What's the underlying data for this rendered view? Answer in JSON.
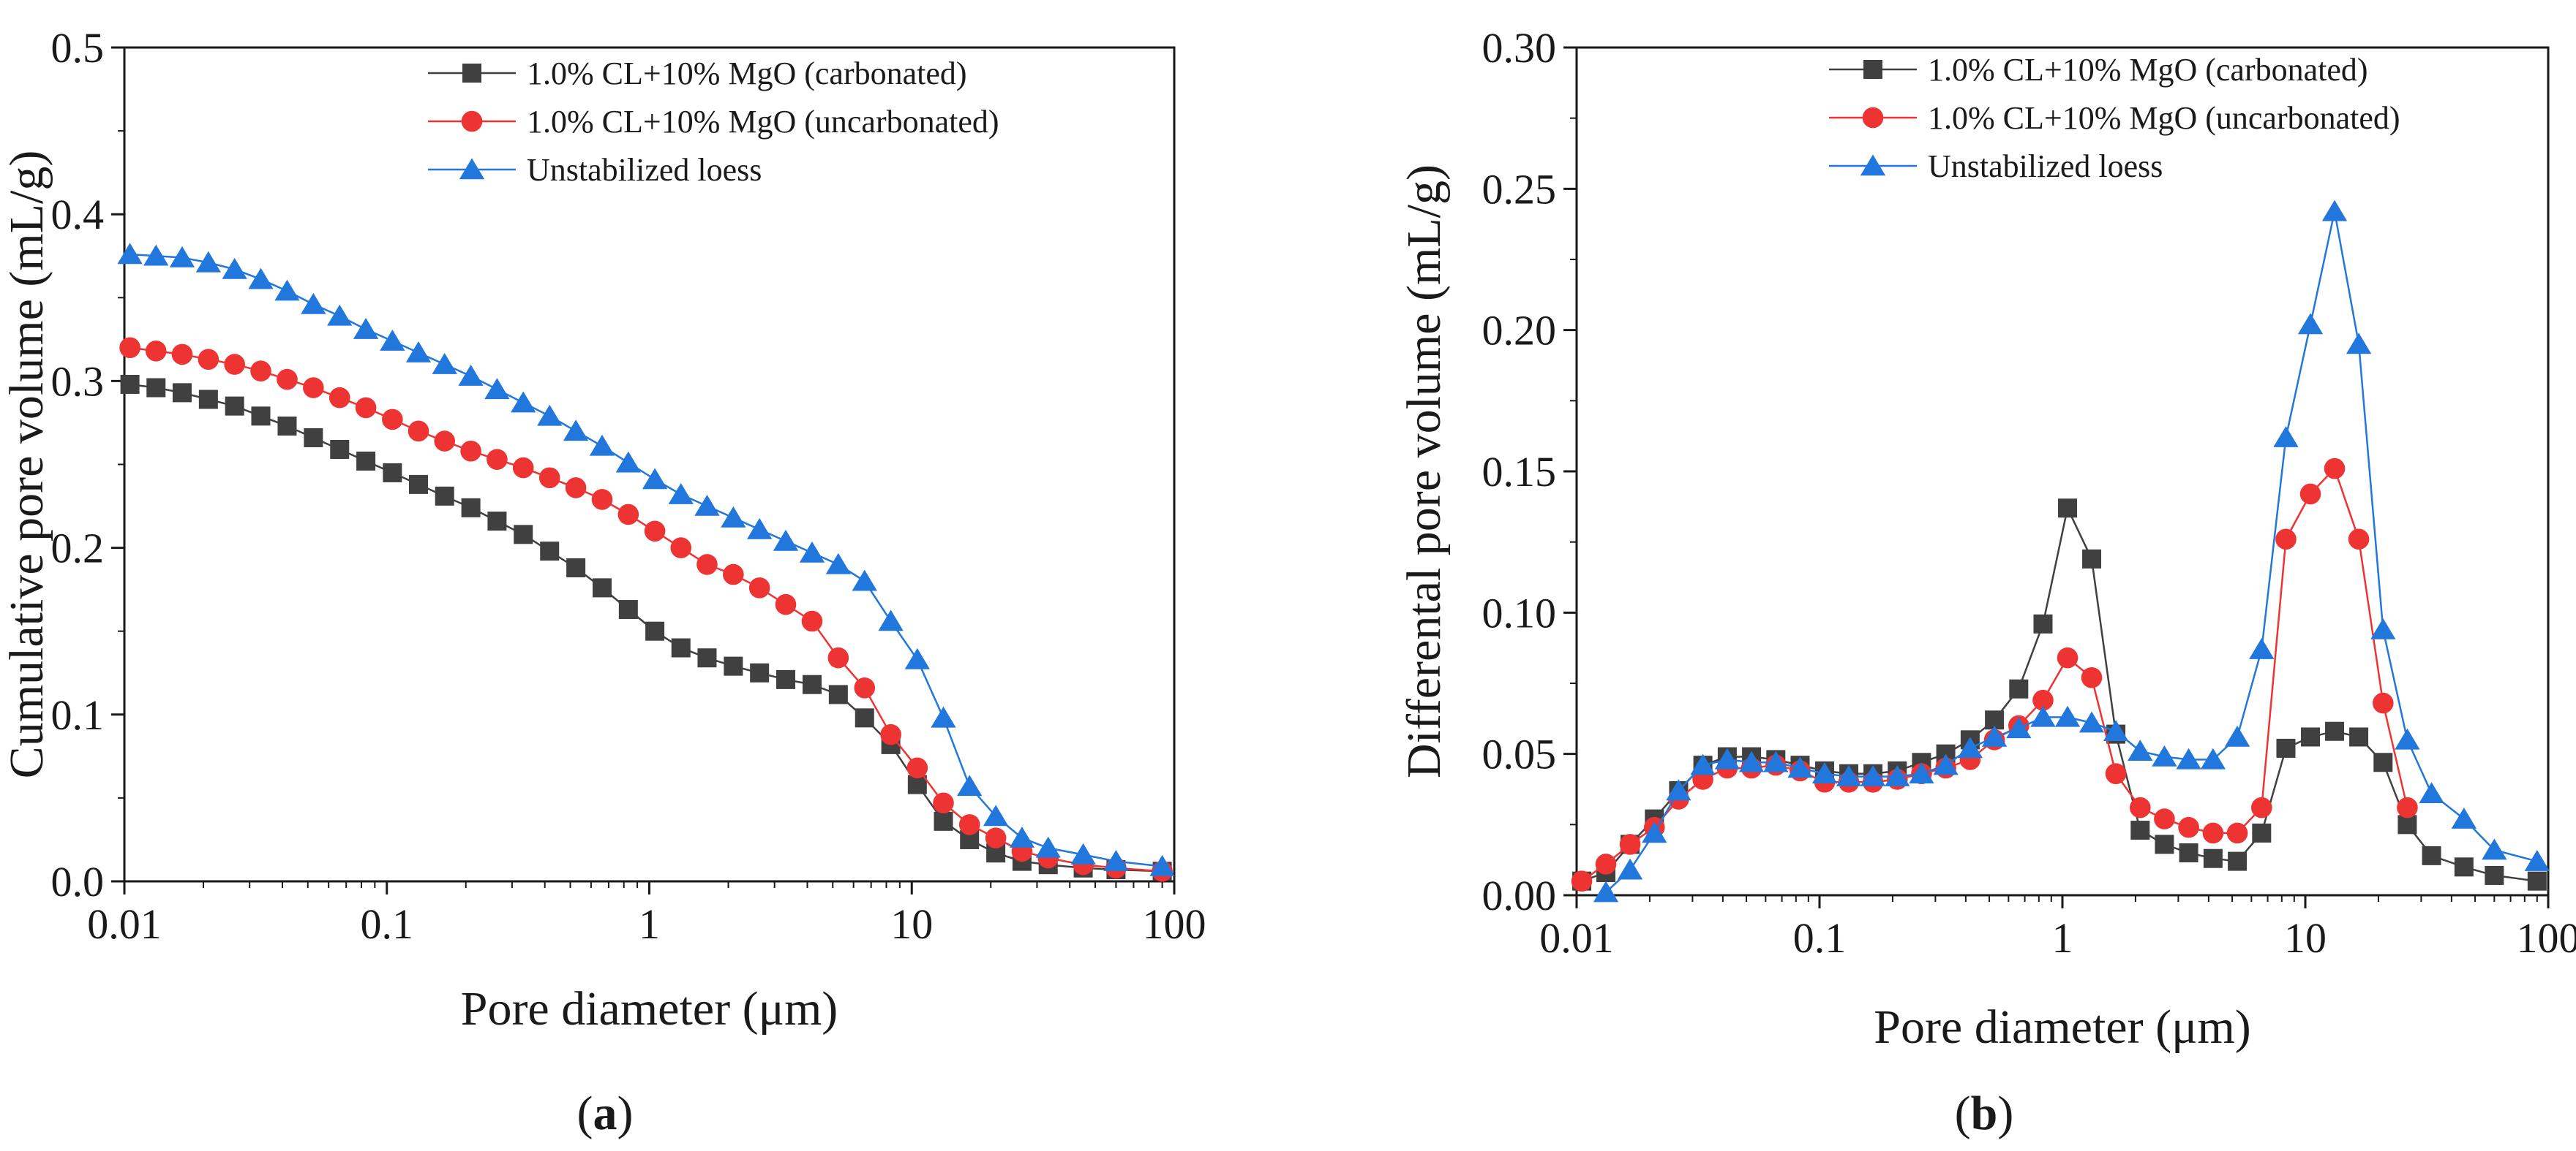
{
  "chart_data": [
    {
      "type": "line",
      "panel": "a",
      "caption_open": "(",
      "caption_letter": "a",
      "caption_close": ")",
      "xlabel": "Pore diameter (μm)",
      "ylabel": "Cumulative pore volume (mL/g)",
      "xscale": "log",
      "xlim": [
        0.01,
        100
      ],
      "ylim": [
        0,
        0.5
      ],
      "xticks": [
        0.01,
        0.1,
        1,
        10,
        100
      ],
      "xtick_labels": [
        "0.01",
        "0.1",
        "1",
        "10",
        "100"
      ],
      "yticks": [
        0,
        0.1,
        0.2,
        0.3,
        0.4,
        0.5
      ],
      "ytick_labels": [
        "0.0",
        "0.1",
        "0.2",
        "0.3",
        "0.4",
        "0.5"
      ],
      "legend_position": "top-right",
      "series": [
        {
          "name": "1.0% CL+10% MgO (carbonated)",
          "color": "#404040",
          "marker": "square",
          "x": [
            0.0105,
            0.0132,
            0.0166,
            0.0209,
            0.0263,
            0.0331,
            0.0417,
            0.0525,
            0.0661,
            0.0832,
            0.105,
            0.132,
            0.166,
            0.209,
            0.263,
            0.331,
            0.417,
            0.525,
            0.661,
            0.832,
            1.05,
            1.32,
            1.66,
            2.09,
            2.63,
            3.31,
            4.17,
            5.25,
            6.61,
            8.32,
            10.5,
            13.2,
            16.6,
            20.9,
            26.3,
            33.1,
            45,
            60,
            90
          ],
          "y": [
            0.298,
            0.296,
            0.293,
            0.289,
            0.285,
            0.279,
            0.273,
            0.266,
            0.259,
            0.252,
            0.245,
            0.238,
            0.231,
            0.224,
            0.216,
            0.208,
            0.198,
            0.188,
            0.176,
            0.163,
            0.15,
            0.14,
            0.134,
            0.129,
            0.125,
            0.121,
            0.118,
            0.112,
            0.098,
            0.082,
            0.058,
            0.036,
            0.025,
            0.017,
            0.012,
            0.01,
            0.008,
            0.007,
            0.006
          ]
        },
        {
          "name": "1.0% CL+10% MgO (uncarbonated)",
          "color": "#ee3333",
          "marker": "circle",
          "x": [
            0.0105,
            0.0132,
            0.0166,
            0.0209,
            0.0263,
            0.0331,
            0.0417,
            0.0525,
            0.0661,
            0.0832,
            0.105,
            0.132,
            0.166,
            0.209,
            0.263,
            0.331,
            0.417,
            0.525,
            0.661,
            0.832,
            1.05,
            1.32,
            1.66,
            2.09,
            2.63,
            3.31,
            4.17,
            5.25,
            6.61,
            8.32,
            10.5,
            13.2,
            16.6,
            20.9,
            26.3,
            33.1,
            45,
            60,
            90
          ],
          "y": [
            0.32,
            0.318,
            0.316,
            0.313,
            0.31,
            0.306,
            0.301,
            0.296,
            0.29,
            0.284,
            0.277,
            0.27,
            0.264,
            0.258,
            0.253,
            0.248,
            0.242,
            0.236,
            0.229,
            0.22,
            0.21,
            0.2,
            0.19,
            0.184,
            0.176,
            0.166,
            0.156,
            0.134,
            0.116,
            0.088,
            0.068,
            0.047,
            0.034,
            0.026,
            0.018,
            0.014,
            0.01,
            0.008,
            0.006
          ]
        },
        {
          "name": "Unstabilized loess",
          "color": "#2277dd",
          "marker": "triangle",
          "x": [
            0.0105,
            0.0132,
            0.0166,
            0.0209,
            0.0263,
            0.0331,
            0.0417,
            0.0525,
            0.0661,
            0.0832,
            0.105,
            0.132,
            0.166,
            0.209,
            0.263,
            0.331,
            0.417,
            0.525,
            0.661,
            0.832,
            1.05,
            1.32,
            1.66,
            2.09,
            2.63,
            3.31,
            4.17,
            5.25,
            6.61,
            8.32,
            10.5,
            13.2,
            16.6,
            20.9,
            26.3,
            33.1,
            45,
            60,
            90
          ],
          "y": [
            0.376,
            0.375,
            0.374,
            0.371,
            0.367,
            0.361,
            0.354,
            0.346,
            0.339,
            0.331,
            0.324,
            0.317,
            0.31,
            0.303,
            0.295,
            0.287,
            0.279,
            0.27,
            0.261,
            0.251,
            0.241,
            0.232,
            0.225,
            0.218,
            0.211,
            0.204,
            0.197,
            0.19,
            0.18,
            0.156,
            0.133,
            0.098,
            0.057,
            0.039,
            0.026,
            0.02,
            0.016,
            0.012,
            0.009
          ]
        }
      ]
    },
    {
      "type": "line",
      "panel": "b",
      "caption_open": "(",
      "caption_letter": "b",
      "caption_close": ")",
      "xlabel": "Pore diameter (μm)",
      "ylabel": "Differental pore volume (mL/g)",
      "xscale": "log",
      "xlim": [
        0.01,
        100
      ],
      "ylim": [
        0,
        0.3
      ],
      "xticks": [
        0.01,
        0.1,
        1,
        10,
        100
      ],
      "xtick_labels": [
        "0.01",
        "0.1",
        "1",
        "10",
        "100"
      ],
      "yticks": [
        0,
        0.05,
        0.1,
        0.15,
        0.2,
        0.25,
        0.3
      ],
      "ytick_labels": [
        "0.00",
        "0.05",
        "0.10",
        "0.15",
        "0.20",
        "0.25",
        "0.30"
      ],
      "legend_position": "top-left",
      "series": [
        {
          "name": "1.0% CL+10% MgO (carbonated)",
          "color": "#404040",
          "marker": "square",
          "x": [
            0.0105,
            0.0132,
            0.0166,
            0.0209,
            0.0263,
            0.0331,
            0.0417,
            0.0525,
            0.0661,
            0.0832,
            0.105,
            0.132,
            0.166,
            0.209,
            0.263,
            0.331,
            0.417,
            0.525,
            0.661,
            0.832,
            1.05,
            1.32,
            1.66,
            2.09,
            2.63,
            3.31,
            4.17,
            5.25,
            6.61,
            8.32,
            10.5,
            13.2,
            16.6,
            20.9,
            26.3,
            33.1,
            45,
            60,
            90
          ],
          "y": [
            0.005,
            0.008,
            0.018,
            0.027,
            0.037,
            0.046,
            0.049,
            0.049,
            0.048,
            0.046,
            0.044,
            0.043,
            0.043,
            0.044,
            0.047,
            0.05,
            0.055,
            0.062,
            0.073,
            0.096,
            0.137,
            0.119,
            0.057,
            0.023,
            0.018,
            0.015,
            0.013,
            0.012,
            0.022,
            0.052,
            0.056,
            0.058,
            0.056,
            0.047,
            0.025,
            0.014,
            0.01,
            0.007,
            0.005
          ]
        },
        {
          "name": "1.0% CL+10% MgO (uncarbonated)",
          "color": "#ee3333",
          "marker": "circle",
          "x": [
            0.0105,
            0.0132,
            0.0166,
            0.0209,
            0.0263,
            0.0331,
            0.0417,
            0.0525,
            0.0661,
            0.0832,
            0.105,
            0.132,
            0.166,
            0.209,
            0.263,
            0.331,
            0.417,
            0.525,
            0.661,
            0.832,
            1.05,
            1.32,
            1.66,
            2.09,
            2.63,
            3.31,
            4.17,
            5.25,
            6.61,
            8.32,
            10.5,
            13.2,
            16.6,
            20.9,
            26.3
          ],
          "y": [
            0.005,
            0.011,
            0.018,
            0.024,
            0.034,
            0.041,
            0.045,
            0.045,
            0.046,
            0.044,
            0.04,
            0.04,
            0.04,
            0.041,
            0.043,
            0.045,
            0.048,
            0.055,
            0.06,
            0.069,
            0.084,
            0.077,
            0.043,
            0.031,
            0.027,
            0.024,
            0.022,
            0.022,
            0.031,
            0.126,
            0.142,
            0.151,
            0.126,
            0.068,
            0.031
          ]
        },
        {
          "name": "Unstabilized loess",
          "color": "#2277dd",
          "marker": "triangle",
          "x": [
            0.0132,
            0.0166,
            0.0209,
            0.0263,
            0.0331,
            0.0417,
            0.0525,
            0.0661,
            0.0832,
            0.105,
            0.132,
            0.166,
            0.209,
            0.263,
            0.331,
            0.417,
            0.525,
            0.661,
            0.832,
            1.05,
            1.32,
            1.66,
            2.09,
            2.63,
            3.31,
            4.17,
            5.25,
            6.61,
            8.32,
            10.5,
            13.2,
            16.6,
            20.9,
            26.3,
            33.1,
            45,
            60,
            90
          ],
          "y": [
            0.001,
            0.009,
            0.022,
            0.037,
            0.046,
            0.048,
            0.047,
            0.047,
            0.045,
            0.043,
            0.042,
            0.042,
            0.042,
            0.043,
            0.046,
            0.052,
            0.056,
            0.059,
            0.063,
            0.063,
            0.061,
            0.058,
            0.051,
            0.049,
            0.048,
            0.048,
            0.056,
            0.087,
            0.162,
            0.202,
            0.242,
            0.195,
            0.094,
            0.055,
            0.036,
            0.027,
            0.016,
            0.012
          ]
        }
      ]
    }
  ]
}
